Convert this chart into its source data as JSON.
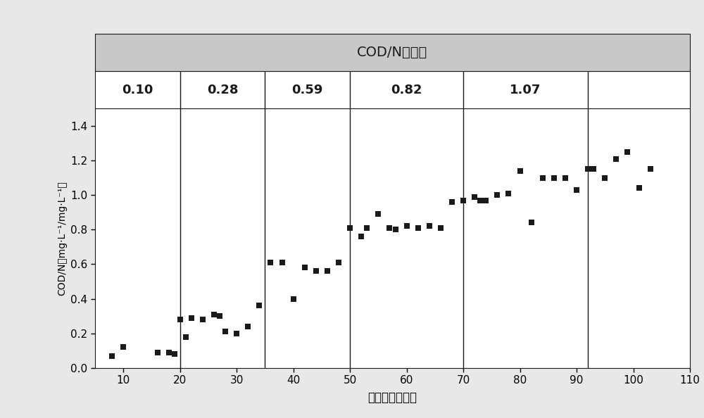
{
  "title": "COD/N平均値",
  "xlabel": "运行时间（天）",
  "ylabel": "COD/N（mg·L⁻¹/mg·L⁻¹）",
  "xlim": [
    5,
    110
  ],
  "ylim": [
    0,
    1.5
  ],
  "xticks": [
    10,
    20,
    30,
    40,
    50,
    60,
    70,
    80,
    90,
    100,
    110
  ],
  "yticks": [
    0.0,
    0.2,
    0.4,
    0.6,
    0.8,
    1.0,
    1.2,
    1.4
  ],
  "vlines": [
    20,
    35,
    50,
    70,
    92
  ],
  "phase_labels": [
    "0.10",
    "0.28",
    "0.59",
    "0.82",
    "1.07"
  ],
  "data_x": [
    8,
    10,
    16,
    18,
    19,
    20,
    21,
    22,
    24,
    26,
    27,
    28,
    30,
    32,
    34,
    36,
    38,
    40,
    42,
    44,
    46,
    48,
    50,
    52,
    53,
    55,
    57,
    58,
    60,
    62,
    64,
    66,
    68,
    70,
    72,
    73,
    74,
    76,
    78,
    80,
    82,
    84,
    86,
    88,
    90,
    92,
    93,
    95,
    97,
    99,
    101,
    103
  ],
  "data_y": [
    0.07,
    0.12,
    0.09,
    0.09,
    0.08,
    0.28,
    0.18,
    0.29,
    0.28,
    0.31,
    0.3,
    0.21,
    0.2,
    0.24,
    0.36,
    0.61,
    0.61,
    0.4,
    0.58,
    0.56,
    0.56,
    0.61,
    0.81,
    0.76,
    0.81,
    0.89,
    0.81,
    0.8,
    0.82,
    0.81,
    0.82,
    0.81,
    0.96,
    0.97,
    0.99,
    0.97,
    0.97,
    1.0,
    1.01,
    1.14,
    0.84,
    1.1,
    1.1,
    1.1,
    1.03,
    1.15,
    1.15,
    1.1,
    1.21,
    1.25,
    1.04,
    1.15
  ],
  "marker_color": "#1a1a1a",
  "marker_size": 6,
  "title_bg_color": "#c8c8c8",
  "phase_label_color": "#1a1a1a",
  "fig_bg_color": "#e8e8e8",
  "vline_color": "#1a1a1a"
}
